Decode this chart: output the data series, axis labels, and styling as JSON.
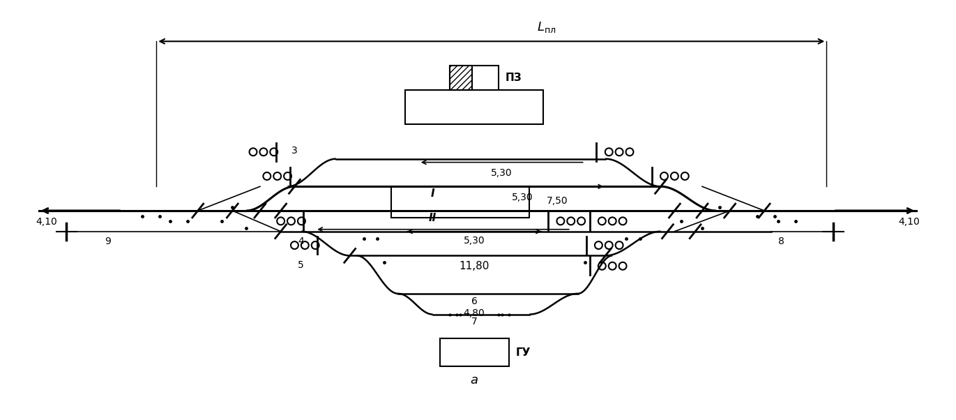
{
  "background_color": "#ffffff",
  "figsize": [
    13.71,
    6.02
  ],
  "dpi": 100,
  "colors": {
    "black": "#000000",
    "white": "#ffffff"
  },
  "labels": {
    "lpl": "L_пл",
    "pz": "ПЗ",
    "gu": "ГУ",
    "a": "а",
    "track_I": "I",
    "track_II": "II",
    "track3": "3",
    "track4": "4",
    "track5": "5",
    "track6": "6",
    "track7": "7",
    "track8": "8",
    "track9": "9",
    "dist_410": "4,10",
    "dist_530a": "5,30",
    "dist_530b": "5,30",
    "dist_530c": "5,30",
    "dist_750": "7,50",
    "dist_1180": "11,80",
    "dist_480": "4,80"
  }
}
